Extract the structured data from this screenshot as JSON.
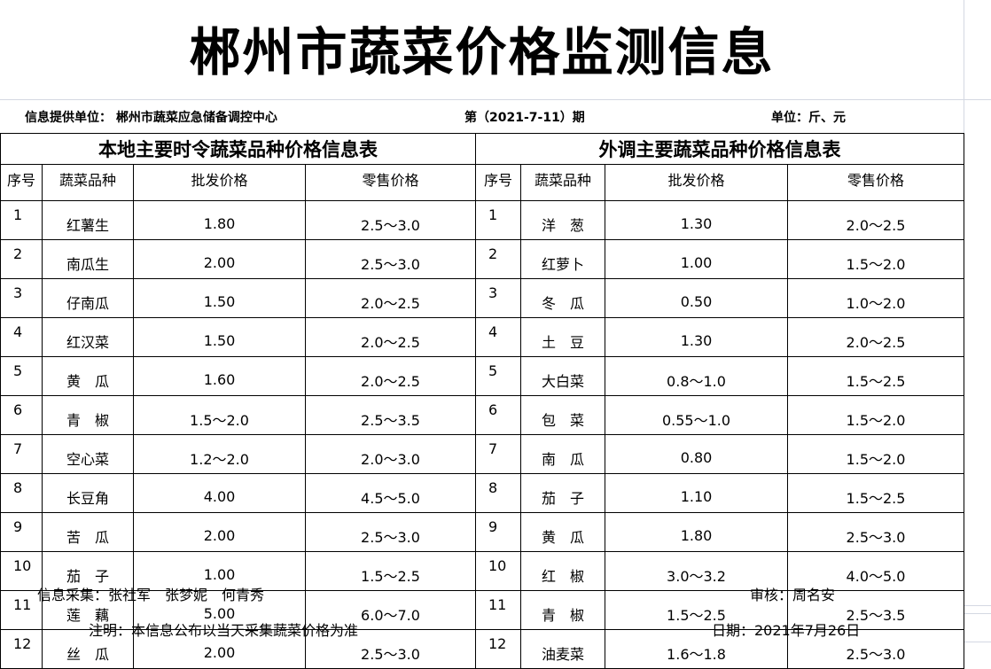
{
  "title": "郴州市蔬菜价格监测信息",
  "provider": "信息提供单位：  郴州市蔬菜应急储备调控中心",
  "issue": "第（2021-7-11）期",
  "unit": "单位：斤、元",
  "local": {
    "title": "本地主要时令蔬菜品种价格信息表",
    "headers": [
      "序号",
      "蔬菜品种",
      "批发价格",
      "零售价格"
    ],
    "rows": [
      [
        "1",
        "红薯生",
        "1.80",
        "2.5～3.0"
      ],
      [
        "2",
        "南瓜生",
        "2.00",
        "2.5～3.0"
      ],
      [
        "3",
        "仔南瓜",
        "1.50",
        "2.0～2.5"
      ],
      [
        "4",
        "红汉菜",
        "1.50",
        "2.0～2.5"
      ],
      [
        "5",
        "黄　瓜",
        "1.60",
        "2.0～2.5"
      ],
      [
        "6",
        "青　椒",
        "1.5～2.0",
        "2.5～3.5"
      ],
      [
        "7",
        "空心菜",
        "1.2～2.0",
        "2.0～3.0"
      ],
      [
        "8",
        "长豆角",
        "4.00",
        "4.5～5.0"
      ],
      [
        "9",
        "苦　瓜",
        "2.00",
        "2.5～3.0"
      ],
      [
        "10",
        "茄　子",
        "1.00",
        "1.5～2.5"
      ],
      [
        "11",
        "莲　藕",
        "5.00",
        "6.0～7.0"
      ],
      [
        "12",
        "丝　瓜",
        "2.00",
        "2.5～3.0"
      ]
    ]
  },
  "external": {
    "title": "外调主要蔬菜品种价格信息表",
    "headers": [
      "序号",
      "蔬菜品种",
      "批发价格",
      "零售价格"
    ],
    "rows": [
      [
        "1",
        "洋　葱",
        "1.30",
        "2.0～2.5"
      ],
      [
        "2",
        "红萝卜",
        "1.00",
        "1.5～2.0"
      ],
      [
        "3",
        "冬　瓜",
        "0.50",
        "1.0～2.0"
      ],
      [
        "4",
        "土　豆",
        "1.30",
        "2.0～2.5"
      ],
      [
        "5",
        "大白菜",
        "0.8～1.0",
        "1.5～2.5"
      ],
      [
        "6",
        "包　菜",
        "0.55～1.0",
        "1.5～2.0"
      ],
      [
        "7",
        "南　瓜",
        "0.80",
        "1.5～2.0"
      ],
      [
        "8",
        "茄　子",
        "1.10",
        "1.5～2.5"
      ],
      [
        "9",
        "黄　瓜",
        "1.80",
        "2.5～3.0"
      ],
      [
        "10",
        "红　椒",
        "3.0～3.2",
        "4.0～5.0"
      ],
      [
        "11",
        "青　椒",
        "1.5～2.5",
        "2.5～3.5"
      ],
      [
        "12",
        "油麦菜",
        "1.6～1.8",
        "2.5～3.0"
      ]
    ]
  },
  "collectors": "信息采集：张社军　张梦妮　何青秀",
  "reviewer": "审核：周名安",
  "note": "注明：本信息公布以当天采集蔬菜价格为准",
  "date": "日期：2021年7月26日"
}
